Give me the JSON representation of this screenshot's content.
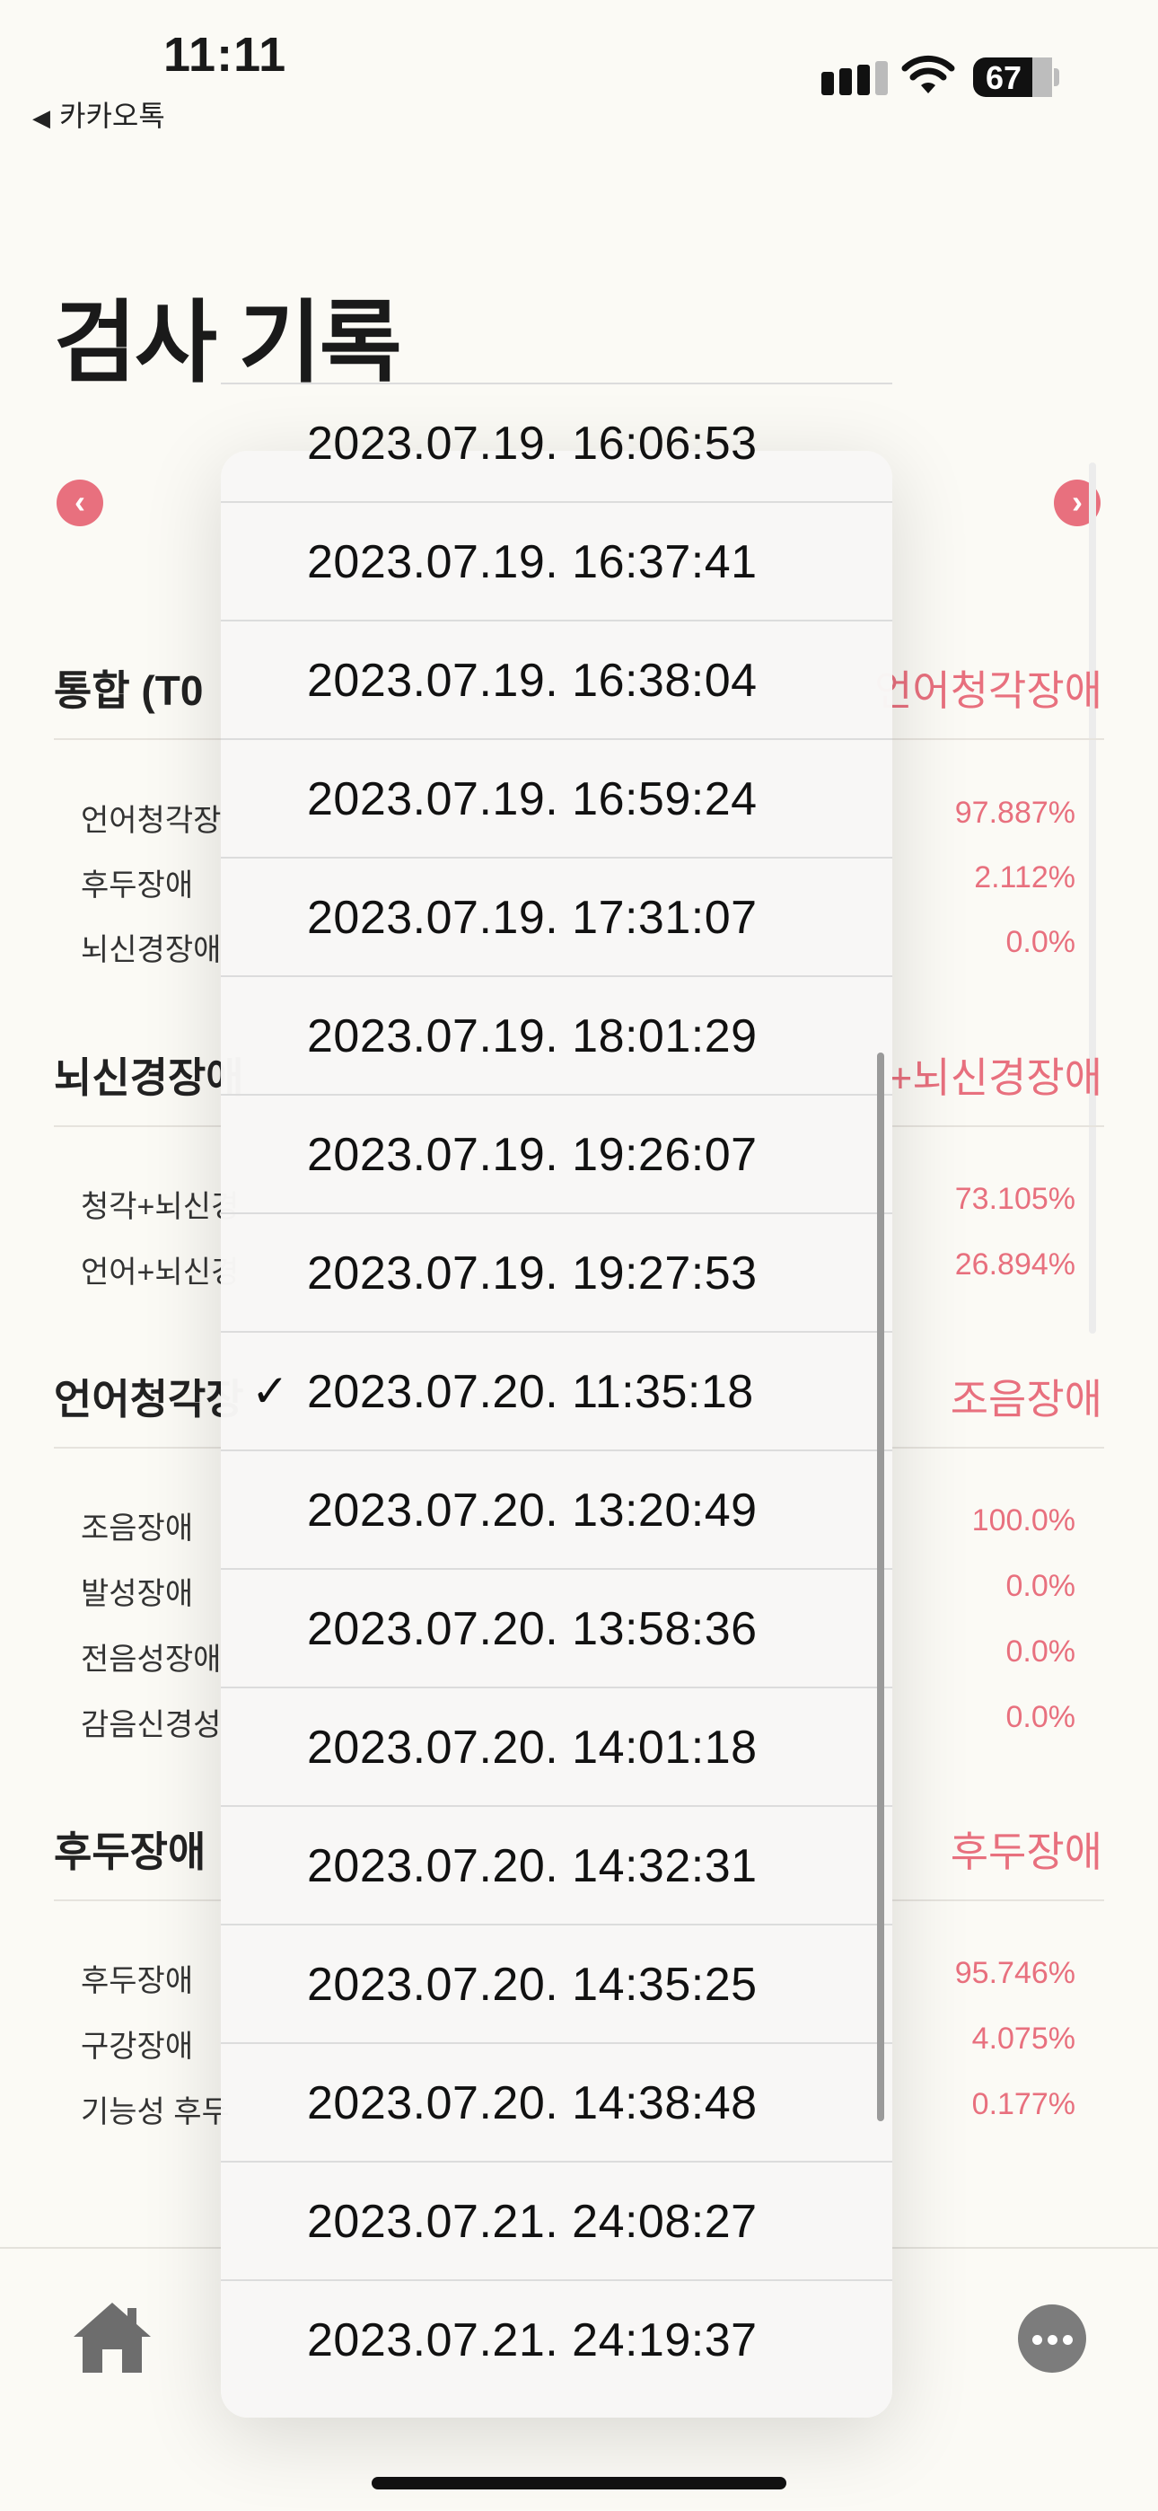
{
  "status_bar": {
    "time": "11:11",
    "back_app": "카카오톡",
    "battery": "67"
  },
  "page": {
    "title": "검사 기록"
  },
  "sections": [
    {
      "head": "통합 (T0",
      "result": "언어청각장애",
      "rows": [
        {
          "label": "언어청각장",
          "value": "97.887%"
        },
        {
          "label": "후두장애",
          "value": "2.112%"
        },
        {
          "label": "뇌신경장애",
          "value": "0.0%"
        }
      ]
    },
    {
      "head": "뇌신경장애",
      "result": "+뇌신경장애",
      "rows": [
        {
          "label": "청각+뇌신경",
          "value": "73.105%"
        },
        {
          "label": "언어+뇌신경",
          "value": "26.894%"
        }
      ]
    },
    {
      "head": "언어청각장",
      "result": "조음장애",
      "rows": [
        {
          "label": "조음장애",
          "value": "100.0%"
        },
        {
          "label": "발성장애",
          "value": "0.0%"
        },
        {
          "label": "전음성장애",
          "value": "0.0%"
        },
        {
          "label": "감음신경성",
          "value": "0.0%"
        }
      ]
    },
    {
      "head": "후두장애",
      "result": "후두장애",
      "rows": [
        {
          "label": "후두장애",
          "value": "95.746%"
        },
        {
          "label": "구강장애",
          "value": "4.075%"
        },
        {
          "label": "기능성 후두",
          "value": "0.177%"
        }
      ]
    }
  ],
  "menu": {
    "selected_index": 8,
    "items": [
      "2023.07.19. 16:06:53",
      "2023.07.19. 16:37:41",
      "2023.07.19. 16:38:04",
      "2023.07.19. 16:59:24",
      "2023.07.19. 17:31:07",
      "2023.07.19. 18:01:29",
      "2023.07.19. 19:26:07",
      "2023.07.19. 19:27:53",
      "2023.07.20. 11:35:18",
      "2023.07.20. 13:20:49",
      "2023.07.20. 13:58:36",
      "2023.07.20. 14:01:18",
      "2023.07.20. 14:32:31",
      "2023.07.20. 14:35:25",
      "2023.07.20. 14:38:48",
      "2023.07.21. 24:08:27",
      "2023.07.21. 24:19:37"
    ],
    "check_glyph": "✓"
  },
  "icons": {
    "prev": "chevron-left-icon",
    "next": "chevron-right-icon",
    "home": "home-icon",
    "more": "more-icon"
  },
  "colors": {
    "accent": "#e8707e",
    "background": "#fbfaf5"
  }
}
